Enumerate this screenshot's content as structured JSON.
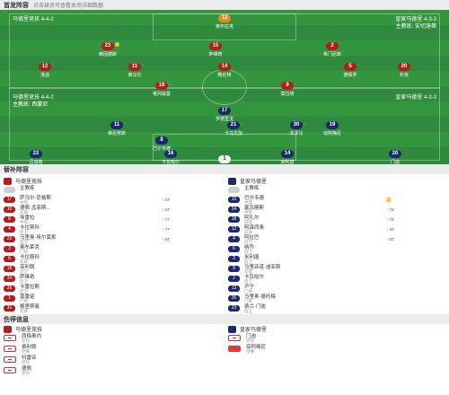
{
  "lineup": {
    "title": "首发阵容",
    "subtitle": "点击球员可查看本场详细数据",
    "home_team": {
      "name": "马德里竞技",
      "formation": "4-4-2",
      "manager": "主教练: 西蒙尼"
    },
    "away_team": {
      "name": "皇家马德里",
      "formation": "4-3-3",
      "manager": "主教练: 安切洛蒂"
    },
    "home_players": [
      {
        "num": "13",
        "name": "奥布拉克",
        "tag": ""
      },
      {
        "num": "23",
        "name": "赖因德斯",
        "tag": "🟨"
      },
      {
        "num": "15",
        "name": "萨维奇",
        "tag": ""
      },
      {
        "num": "2",
        "name": "希门尼斯",
        "tag": ""
      },
      {
        "num": "12",
        "name": "洛迪",
        "tag": "↓"
      },
      {
        "num": "11",
        "name": "莱马尔",
        "tag": "↓"
      },
      {
        "num": "14",
        "name": "略伦特",
        "tag": ""
      },
      {
        "num": "5",
        "name": "德保罗",
        "tag": "↓"
      },
      {
        "num": "20",
        "name": "科克",
        "tag": ""
      },
      {
        "num": "19",
        "name": "格列兹曼",
        "tag": "↓"
      },
      {
        "num": "9",
        "name": "莫拉塔",
        "tag": "↓"
      }
    ],
    "away_players": [
      {
        "num": "1",
        "name": "库尔图瓦",
        "tag": ""
      },
      {
        "num": "22",
        "name": "吕迪格",
        "tag": ""
      },
      {
        "num": "16",
        "name": "卡瓦哈尔",
        "tag": ""
      },
      {
        "num": "14",
        "name": "米利唐",
        "tag": ""
      },
      {
        "num": "20",
        "name": "门迪",
        "tag": ""
      },
      {
        "num": "8",
        "name": "巴尔韦德",
        "tag": ""
      },
      {
        "num": "21",
        "name": "卡马文加",
        "tag": "↓"
      },
      {
        "num": "19",
        "name": "琼阿梅尼",
        "tag": ""
      },
      {
        "num": "11",
        "name": "维尼修斯",
        "tag": "↓"
      },
      {
        "num": "17",
        "name": "罗德里戈",
        "tag": ""
      },
      {
        "num": "30",
        "name": "本泽马",
        "tag": "↓"
      }
    ],
    "home_legend": [
      "马德里竞技",
      "4-4-2"
    ],
    "away_legend": [
      "皇家马德里",
      "4-3-3"
    ]
  },
  "subs": {
    "title": "替补阵容",
    "home": {
      "team": "马德里竞技",
      "players": [
        {
          "num": "",
          "name": "主教练",
          "pos": "",
          "event": ""
        },
        {
          "num": "17",
          "name": "萨乌尔·尼格斯",
          "pos": "中场",
          "event": "↑ 63'"
        },
        {
          "num": "10",
          "name": "德佩·孟菲斯...",
          "pos": "前锋",
          "event": "↑ 63'"
        },
        {
          "num": "8",
          "name": "埃雷拉",
          "pos": "中场",
          "event": "↑ 77'"
        },
        {
          "num": "4",
          "name": "卡拉斯科",
          "pos": "后卫",
          "event": "↑ 77'"
        },
        {
          "num": "22",
          "name": "马里奥·埃尔莫索",
          "pos": "后卫",
          "event": "↑ 84'"
        },
        {
          "num": "3",
          "name": "奥布莱克",
          "pos": "门将",
          "event": ""
        },
        {
          "num": "6",
          "name": "卡拉斯科",
          "pos": "前锋",
          "event": ""
        },
        {
          "num": "18",
          "name": "菲利佩",
          "pos": "后卫",
          "event": ""
        },
        {
          "num": "24",
          "name": "萨维奇",
          "pos": "后卫",
          "event": ""
        },
        {
          "num": "26",
          "name": "卡雷拉斯",
          "pos": "后卫",
          "event": ""
        },
        {
          "num": "1",
          "name": "莫雷诺",
          "pos": "门将",
          "event": ""
        },
        {
          "num": "31",
          "name": "格里斯曼",
          "pos": "前锋",
          "event": ""
        }
      ]
    },
    "away": {
      "team": "皇家马德里",
      "players": [
        {
          "num": "",
          "name": "主教练",
          "pos": "",
          "event": ""
        },
        {
          "num": "15",
          "name": "巴尔韦德",
          "pos": "中场",
          "event": "🟨"
        },
        {
          "num": "24",
          "name": "塞瓦略斯",
          "pos": "中场",
          "event": "↑ 76'"
        },
        {
          "num": "18",
          "name": "阿扎尔",
          "pos": "前锋",
          "event": "↑ 76'"
        },
        {
          "num": "12",
          "name": "阿森西奥",
          "pos": "前锋",
          "event": "↑ 82'"
        },
        {
          "num": "4",
          "name": "阿拉巴",
          "pos": "后卫",
          "event": "↑ 82'"
        },
        {
          "num": "6",
          "name": "纳乔",
          "pos": "后卫",
          "event": ""
        },
        {
          "num": "3",
          "name": "米利唐",
          "pos": "后卫",
          "event": ""
        },
        {
          "num": "9",
          "name": "马里亚诺·迪亚斯",
          "pos": "前锋",
          "event": ""
        },
        {
          "num": "2",
          "name": "卡瓦哈尔",
          "pos": "后卫",
          "event": ""
        },
        {
          "num": "13",
          "name": "卢宁",
          "pos": "门将",
          "event": ""
        },
        {
          "num": "26",
          "name": "马里奥·德托梅",
          "pos": "门将",
          "event": ""
        },
        {
          "num": "23",
          "name": "费兰·门迪",
          "pos": "后卫",
          "event": ""
        }
      ]
    }
  },
  "injury": {
    "title": "伤停信息",
    "home": {
      "team": "马德里竞技",
      "items": [
        {
          "name": "西梅奥内",
          "status": "受伤"
        },
        {
          "name": "费利佩",
          "status": "停赛"
        },
        {
          "name": "科雷亚",
          "status": "受伤"
        },
        {
          "name": "德佩",
          "status": "受伤"
        }
      ]
    },
    "away": {
      "team": "皇家马德里",
      "items": [
        {
          "name": "门迪",
          "status": "受伤"
        },
        {
          "name": "琼阿梅尼",
          "status": "停赛"
        }
      ]
    }
  },
  "colors": {
    "home": "#b71c1c",
    "away": "#1a2a6c",
    "pitch": "#2f8a3e"
  }
}
